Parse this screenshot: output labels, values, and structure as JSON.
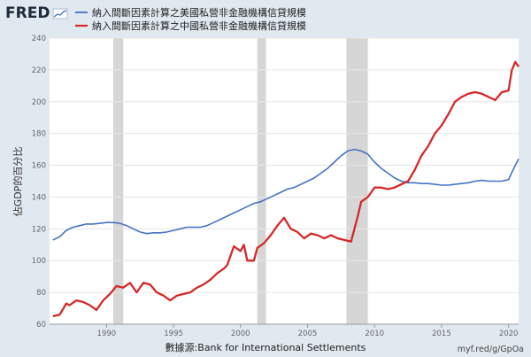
{
  "brand": {
    "logo": "FRED",
    "logo_icon": "fred-chart-icon"
  },
  "colors": {
    "series_blue": "#4572c4",
    "series_red": "#d62728",
    "recession": "#d6d6d6",
    "background": "#e1e9f0",
    "plot_bg": "#ffffff"
  },
  "source_text": "數據源:Bank for International Settlements",
  "url_text": "myf.red/g/GpOa",
  "chart_data": {
    "type": "line",
    "ylabel": "佔GDP的百分比",
    "xlabel": "",
    "xlim": [
      1985.75,
      2020.75
    ],
    "ylim": [
      60,
      240
    ],
    "yticks": [
      60,
      80,
      100,
      120,
      140,
      160,
      180,
      200,
      220,
      240
    ],
    "xticks": [
      1990,
      1995,
      2000,
      2005,
      2010,
      2015,
      2020
    ],
    "recessions": [
      [
        1990.5,
        1991.25
      ],
      [
        2001.25,
        2001.9
      ],
      [
        2007.9,
        2009.5
      ]
    ],
    "grid": true,
    "legend_position": "top-left",
    "series": [
      {
        "name": "納入間斷因素計算之美國私營非金融機構信貸規模",
        "color": "#4572c4",
        "x": [
          1986.0,
          1986.5,
          1987.0,
          1987.5,
          1988.0,
          1988.5,
          1989.0,
          1989.5,
          1990.0,
          1990.5,
          1991.0,
          1991.5,
          1992.0,
          1992.5,
          1993.0,
          1993.5,
          1994.0,
          1994.5,
          1995.0,
          1995.5,
          1996.0,
          1996.5,
          1997.0,
          1997.5,
          1998.0,
          1998.5,
          1999.0,
          1999.5,
          2000.0,
          2000.5,
          2001.0,
          2001.5,
          2002.0,
          2002.5,
          2003.0,
          2003.5,
          2004.0,
          2004.5,
          2005.0,
          2005.5,
          2006.0,
          2006.5,
          2007.0,
          2007.5,
          2008.0,
          2008.5,
          2009.0,
          2009.5,
          2010.0,
          2010.5,
          2011.0,
          2011.5,
          2012.0,
          2012.5,
          2013.0,
          2013.5,
          2014.0,
          2014.5,
          2015.0,
          2015.5,
          2016.0,
          2016.5,
          2017.0,
          2017.5,
          2018.0,
          2018.5,
          2019.0,
          2019.5,
          2020.0,
          2020.5,
          2020.75
        ],
        "values": [
          113,
          115,
          119,
          121,
          122,
          123,
          123,
          123.5,
          124,
          124,
          123.5,
          122,
          120,
          118,
          117,
          117.5,
          117.5,
          118,
          119,
          120,
          121,
          121,
          121,
          122,
          124,
          126,
          128,
          130,
          132,
          134,
          136,
          137,
          139,
          141,
          143,
          145,
          146,
          148,
          150,
          152,
          155,
          158,
          162,
          166,
          169,
          170,
          169,
          167,
          162,
          158,
          155,
          152,
          150,
          149,
          149,
          148.5,
          148.5,
          148,
          147.5,
          147.5,
          148,
          148.5,
          149,
          150,
          150.5,
          150,
          150,
          150,
          151,
          160,
          164
        ]
      },
      {
        "name": "納入間斷因素計算之中國私營非金融機構信貸規模",
        "color": "#d62728",
        "x": [
          1986.0,
          1986.5,
          1987.0,
          1987.25,
          1987.75,
          1988.25,
          1988.75,
          1989.25,
          1989.75,
          1990.25,
          1990.75,
          1991.25,
          1991.75,
          1992.25,
          1992.75,
          1993.25,
          1993.75,
          1994.25,
          1994.75,
          1995.25,
          1995.75,
          1996.25,
          1996.75,
          1997.25,
          1997.75,
          1998.25,
          1998.75,
          1999.0,
          1999.5,
          2000.0,
          2000.25,
          2000.5,
          2001.0,
          2001.25,
          2001.75,
          2002.25,
          2002.75,
          2003.25,
          2003.75,
          2004.25,
          2004.75,
          2005.25,
          2005.75,
          2006.25,
          2006.75,
          2007.25,
          2007.75,
          2008.25,
          2008.75,
          2009.0,
          2009.5,
          2010.0,
          2010.5,
          2011.0,
          2011.5,
          2012.0,
          2012.5,
          2013.0,
          2013.5,
          2014.0,
          2014.5,
          2015.0,
          2015.5,
          2016.0,
          2016.5,
          2017.0,
          2017.5,
          2018.0,
          2018.5,
          2019.0,
          2019.5,
          2020.0,
          2020.25,
          2020.5,
          2020.75
        ],
        "values": [
          65,
          66,
          73,
          72,
          75,
          74,
          72,
          69,
          75,
          79,
          84,
          83,
          86,
          80,
          86,
          85,
          80,
          78,
          75,
          78,
          79,
          80,
          83,
          85,
          88,
          92,
          95,
          97,
          109,
          106,
          110,
          100,
          100,
          108,
          111,
          116,
          122,
          127,
          120,
          118,
          114,
          117,
          116,
          114,
          116,
          114,
          113,
          112,
          128,
          137,
          140,
          146,
          146,
          145,
          146,
          148,
          150,
          157,
          166,
          172,
          180,
          185,
          192,
          200,
          203,
          205,
          206,
          205,
          203,
          201,
          206,
          207,
          220,
          225,
          222
        ]
      }
    ]
  }
}
